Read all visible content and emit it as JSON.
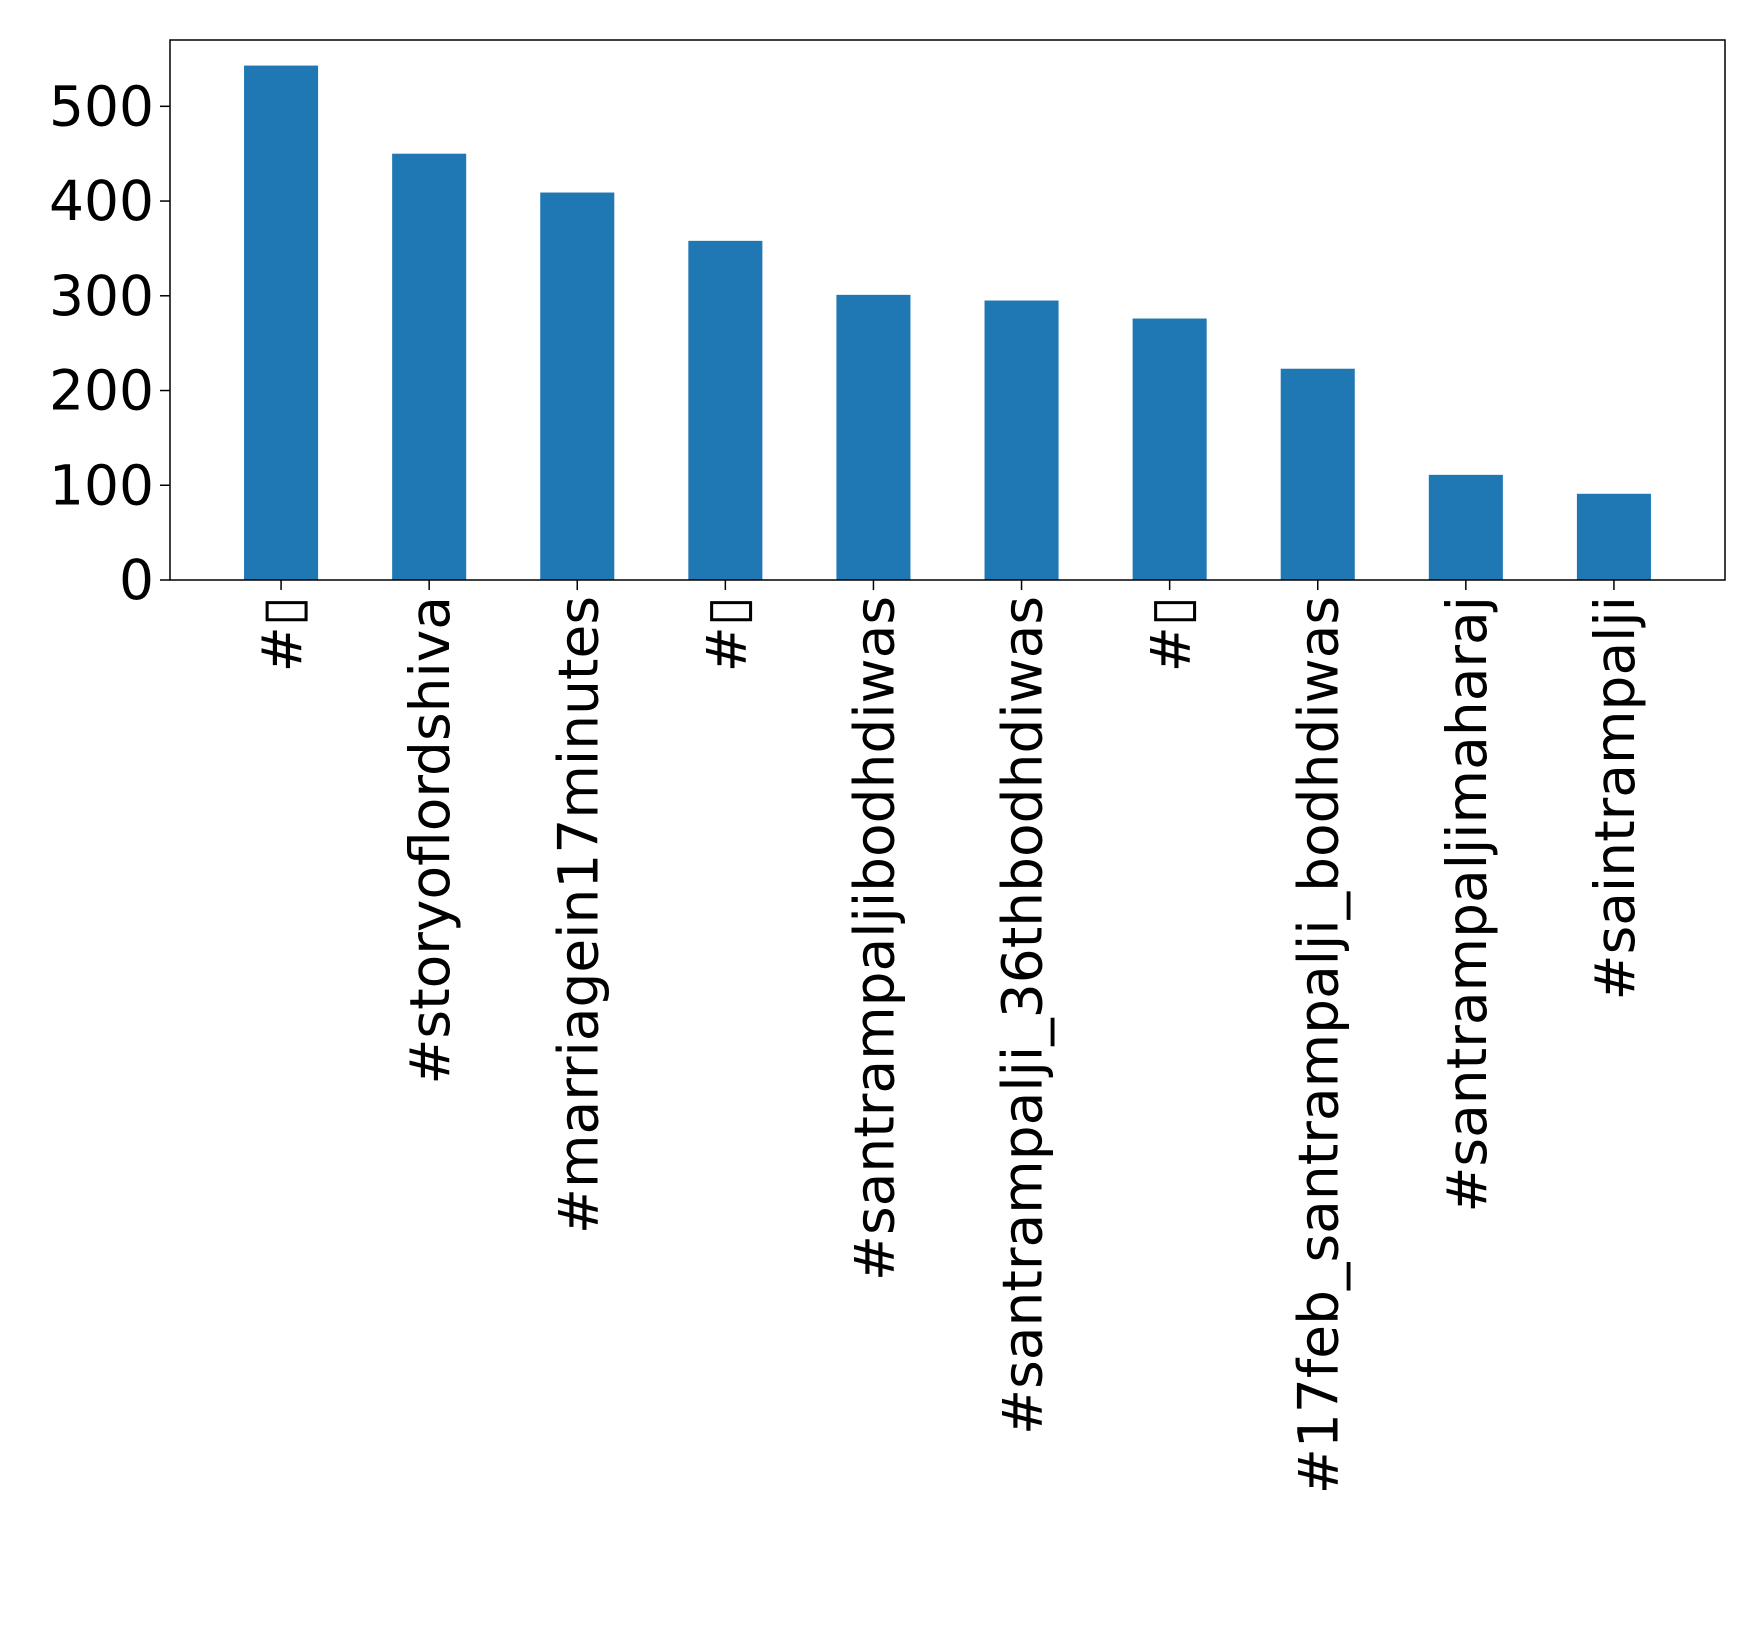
{
  "chart_data": {
    "type": "bar",
    "categories": [
      "#▯",
      "#storyoflordshiva",
      "#marriagein17minutes",
      "#▯",
      "#santrampaljibodhdiwas",
      "#santrampalji_36thbodhdiwas",
      "#▯",
      "#17feb_santrampalji_bodhdiwas",
      "#santrampaljimaharaj",
      "#saintrampalji"
    ],
    "values": [
      543,
      450,
      409,
      358,
      301,
      295,
      276,
      223,
      111,
      91
    ],
    "title": "",
    "xlabel": "",
    "ylabel": "",
    "ylim": [
      0,
      570
    ],
    "yticks": [
      0,
      100,
      200,
      300,
      400,
      500
    ],
    "grid": false,
    "legend": "none",
    "bar_color": "#1f77b4",
    "axis_color": "#000000"
  }
}
